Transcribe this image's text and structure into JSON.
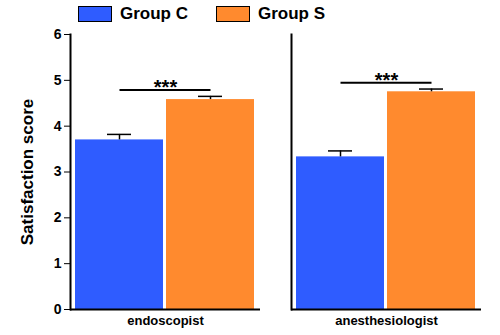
{
  "chart_data": {
    "type": "bar",
    "y_label": "Satisfaction score",
    "categories": [
      "endoscopist",
      "anesthesiologist"
    ],
    "series": [
      {
        "name": "Group C",
        "color": "#2f5cff",
        "values": [
          3.7,
          3.33
        ],
        "errors": [
          0.12,
          0.13
        ]
      },
      {
        "name": "Group S",
        "color": "#ff8a2e",
        "values": [
          4.58,
          4.75
        ],
        "errors": [
          0.07,
          0.06
        ]
      }
    ],
    "annotations": [
      {
        "category": "endoscopist",
        "text": "***"
      },
      {
        "category": "anesthesiologist",
        "text": "***"
      }
    ],
    "ylim": [
      0,
      6
    ],
    "yticks": [
      0,
      1,
      2,
      3,
      4,
      5,
      6
    ],
    "legend": "top",
    "grid": false
  }
}
